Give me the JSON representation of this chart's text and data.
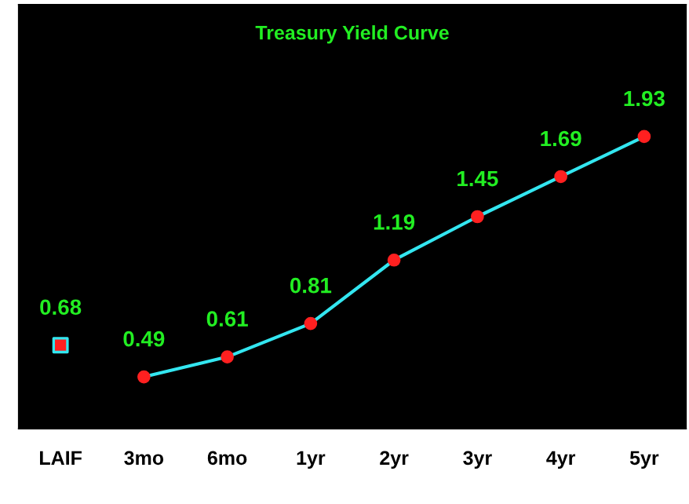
{
  "chart_data": {
    "type": "line",
    "title": "Treasury Yield Curve",
    "categories": [
      "LAIF",
      "3mo",
      "6mo",
      "1yr",
      "2yr",
      "3yr",
      "4yr",
      "5yr"
    ],
    "series": [
      {
        "type": "scatter",
        "color": "#ff2020",
        "marker": "square",
        "values": [
          0.68,
          null,
          null,
          null,
          null,
          null,
          null,
          null
        ]
      },
      {
        "color": "#33e6f0",
        "marker": "circle",
        "line_style": "solid",
        "values": [
          null,
          0.49,
          0.61,
          0.81,
          1.19,
          1.45,
          1.69,
          1.93
        ]
      }
    ],
    "ylim": [
      0.18,
      2.72
    ],
    "data_labels": true,
    "grid": false,
    "legend": false
  }
}
